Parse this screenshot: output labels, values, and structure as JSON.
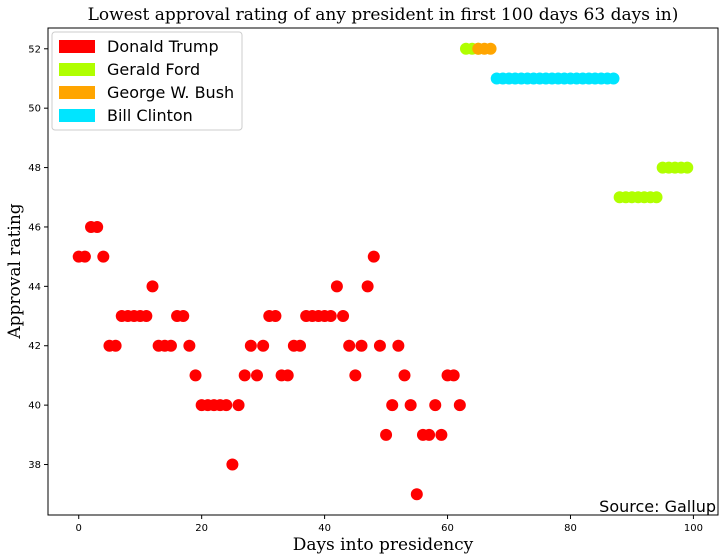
{
  "chart_data": {
    "type": "scatter",
    "title": "Lowest approval rating of any president in first 100 days 63 days in)",
    "xlabel": "Days into presidency",
    "ylabel": "Approval rating",
    "xlim": [
      -5,
      104
    ],
    "ylim": [
      36.3,
      52.7
    ],
    "xticks": [
      0,
      20,
      40,
      60,
      80,
      100
    ],
    "yticks": [
      38,
      40,
      42,
      44,
      46,
      48,
      50,
      52
    ],
    "grid": false,
    "legend_position": "top-left",
    "annotation": "Source: Gallup",
    "series": [
      {
        "name": "Donald Trump",
        "color": "#ff0000",
        "x": [
          0,
          1,
          2,
          3,
          4,
          5,
          6,
          7,
          8,
          9,
          10,
          11,
          12,
          13,
          14,
          15,
          16,
          17,
          18,
          19,
          20,
          21,
          22,
          23,
          24,
          25,
          26,
          27,
          28,
          29,
          30,
          31,
          32,
          33,
          34,
          35,
          36,
          37,
          38,
          39,
          40,
          41,
          42,
          43,
          44,
          45,
          46,
          47,
          48,
          49,
          50,
          51,
          52,
          53,
          54,
          55,
          56,
          57,
          58,
          59,
          60,
          61,
          62
        ],
        "y": [
          45,
          45,
          46,
          46,
          45,
          42,
          42,
          43,
          43,
          43,
          43,
          43,
          44,
          42,
          42,
          42,
          43,
          43,
          42,
          41,
          40,
          40,
          40,
          40,
          40,
          38,
          40,
          41,
          42,
          41,
          42,
          43,
          43,
          41,
          41,
          42,
          42,
          43,
          43,
          43,
          43,
          43,
          44,
          43,
          42,
          41,
          42,
          44,
          45,
          42,
          39,
          40,
          42,
          41,
          40,
          37,
          39,
          39,
          40,
          39,
          41,
          41,
          40
        ]
      },
      {
        "name": "Gerald Ford",
        "color": "#b0ff00",
        "x": [
          63,
          64,
          65,
          88,
          89,
          90,
          91,
          92,
          93,
          94,
          95,
          96,
          97,
          98,
          99
        ],
        "y": [
          52,
          52,
          52,
          47,
          47,
          47,
          47,
          47,
          47,
          47,
          48,
          48,
          48,
          48,
          48
        ]
      },
      {
        "name": "George W. Bush",
        "color": "#ffa500",
        "x": [
          65,
          66,
          67
        ],
        "y": [
          52,
          52,
          52
        ]
      },
      {
        "name": "Bill Clinton",
        "color": "#00e5ff",
        "x": [
          68,
          69,
          70,
          71,
          72,
          73,
          74,
          75,
          76,
          77,
          78,
          79,
          80,
          81,
          82,
          83,
          84,
          85,
          86,
          87
        ],
        "y": [
          51,
          51,
          51,
          51,
          51,
          51,
          51,
          51,
          51,
          51,
          51,
          51,
          51,
          51,
          51,
          51,
          51,
          51,
          51,
          51
        ]
      }
    ]
  }
}
